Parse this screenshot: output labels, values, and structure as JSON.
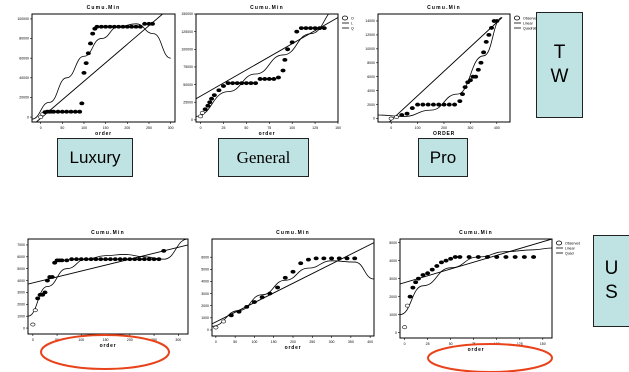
{
  "labels": {
    "luxury": "Luxury",
    "general": "General",
    "pro": "Pro",
    "tw": [
      "T",
      "W"
    ],
    "us": [
      "U",
      "S"
    ]
  },
  "colors": {
    "box_fill": "#bfe3e3",
    "ellipse": "#e8431b",
    "ink": "#000000"
  },
  "chart_data": [
    {
      "id": "tw-luxury",
      "type": "scatter",
      "title": "Cumu.Min",
      "xlabel": "order",
      "ylabel": "",
      "xlim": [
        -20,
        310
      ],
      "ylim": [
        -5000,
        105000
      ],
      "xticks": [
        0,
        50,
        100,
        150,
        200,
        250,
        300
      ],
      "yticks": [
        0,
        20000,
        40000,
        60000,
        80000,
        100000
      ],
      "points": [
        [
          0,
          0
        ],
        [
          5,
          3000
        ],
        [
          10,
          5000
        ],
        [
          15,
          5500
        ],
        [
          20,
          5500
        ],
        [
          25,
          5500
        ],
        [
          30,
          5500
        ],
        [
          40,
          5500
        ],
        [
          50,
          5500
        ],
        [
          60,
          5500
        ],
        [
          70,
          5500
        ],
        [
          80,
          5500
        ],
        [
          90,
          5500
        ],
        [
          95,
          14000
        ],
        [
          100,
          45000
        ],
        [
          105,
          55000
        ],
        [
          110,
          65000
        ],
        [
          115,
          75000
        ],
        [
          120,
          85000
        ],
        [
          125,
          90000
        ],
        [
          130,
          92000
        ],
        [
          140,
          92000
        ],
        [
          150,
          92000
        ],
        [
          160,
          92000
        ],
        [
          170,
          92000
        ],
        [
          180,
          92000
        ],
        [
          190,
          92000
        ],
        [
          200,
          92000
        ],
        [
          210,
          92000
        ],
        [
          220,
          92000
        ],
        [
          230,
          92000
        ],
        [
          240,
          95000
        ],
        [
          250,
          95000
        ],
        [
          258,
          95000
        ]
      ],
      "fits": [
        {
          "type": "linear",
          "points": [
            [
              -10,
              -5000
            ],
            [
              300,
              112000
            ]
          ]
        },
        {
          "type": "quadratic",
          "points": [
            [
              -20,
              -2000
            ],
            [
              20,
              15000
            ],
            [
              60,
              40000
            ],
            [
              100,
              62000
            ],
            [
              140,
              80000
            ],
            [
              180,
              92000
            ],
            [
              220,
              95000
            ],
            [
              260,
              85000
            ],
            [
              300,
              60000
            ]
          ]
        }
      ]
    },
    {
      "id": "tw-general",
      "type": "scatter",
      "title": "Cumu.Min",
      "xlabel": "order",
      "ylabel": "",
      "legend": [
        "O",
        "L",
        "Q"
      ],
      "xlim": [
        -5,
        150
      ],
      "ylim": [
        -3000,
        150000
      ],
      "xticks": [
        0,
        25,
        50,
        75,
        100,
        125,
        150
      ],
      "yticks": [
        0,
        25000,
        50000,
        75000,
        100000,
        125000,
        150000
      ],
      "points": [
        [
          0,
          5000
        ],
        [
          2,
          10000
        ],
        [
          5,
          15000
        ],
        [
          8,
          20000
        ],
        [
          10,
          25000
        ],
        [
          12,
          30000
        ],
        [
          15,
          35000
        ],
        [
          20,
          42000
        ],
        [
          25,
          48000
        ],
        [
          30,
          52000
        ],
        [
          35,
          52000
        ],
        [
          40,
          52000
        ],
        [
          45,
          52000
        ],
        [
          50,
          52000
        ],
        [
          55,
          52000
        ],
        [
          60,
          52000
        ],
        [
          65,
          58000
        ],
        [
          70,
          58000
        ],
        [
          75,
          58000
        ],
        [
          80,
          58000
        ],
        [
          85,
          60000
        ],
        [
          90,
          70000
        ],
        [
          92,
          85000
        ],
        [
          95,
          100000
        ],
        [
          100,
          110000
        ],
        [
          105,
          125000
        ],
        [
          110,
          130000
        ],
        [
          115,
          130000
        ],
        [
          120,
          130000
        ],
        [
          125,
          130000
        ],
        [
          130,
          130000
        ],
        [
          135,
          130000
        ]
      ],
      "fits": [
        {
          "type": "linear",
          "points": [
            [
              -5,
              30000
            ],
            [
              150,
              145000
            ]
          ]
        },
        {
          "type": "quadratic",
          "points": [
            [
              -5,
              5000
            ],
            [
              30,
              40000
            ],
            [
              60,
              65000
            ],
            [
              90,
              92000
            ],
            [
              120,
              122000
            ],
            [
              150,
              158000
            ]
          ]
        }
      ]
    },
    {
      "id": "tw-pro",
      "type": "scatter",
      "title": "Cumu.Min",
      "xlabel": "ORDER",
      "ylabel": "",
      "legend": [
        "Observed",
        "Linear",
        "Quadratic"
      ],
      "xlim": [
        -50,
        450
      ],
      "ylim": [
        -500,
        15000
      ],
      "xticks": [
        0,
        100,
        200,
        300,
        400
      ],
      "yticks": [
        0,
        2000,
        4000,
        6000,
        8000,
        10000,
        12000,
        14000
      ],
      "points": [
        [
          0,
          0
        ],
        [
          20,
          200
        ],
        [
          40,
          500
        ],
        [
          60,
          700
        ],
        [
          80,
          1500
        ],
        [
          100,
          2000
        ],
        [
          120,
          2000
        ],
        [
          140,
          2000
        ],
        [
          160,
          2000
        ],
        [
          180,
          2000
        ],
        [
          200,
          2000
        ],
        [
          220,
          2000
        ],
        [
          240,
          2000
        ],
        [
          260,
          2500
        ],
        [
          270,
          3500
        ],
        [
          280,
          4500
        ],
        [
          290,
          5200
        ],
        [
          300,
          5500
        ],
        [
          310,
          6000
        ],
        [
          320,
          6000
        ],
        [
          330,
          7000
        ],
        [
          340,
          8000
        ],
        [
          350,
          9500
        ],
        [
          360,
          11000
        ],
        [
          370,
          12000
        ],
        [
          380,
          13000
        ],
        [
          390,
          14000
        ],
        [
          400,
          14000
        ]
      ],
      "fits": [
        {
          "type": "linear",
          "points": [
            [
              -50,
              -2000
            ],
            [
              420,
              14500
            ]
          ]
        },
        {
          "type": "quadratic",
          "points": [
            [
              -50,
              500
            ],
            [
              50,
              300
            ],
            [
              150,
              1200
            ],
            [
              250,
              3500
            ],
            [
              350,
              9000
            ],
            [
              420,
              14500
            ]
          ]
        }
      ]
    },
    {
      "id": "us-luxury",
      "type": "scatter",
      "title": "Cumu.Min",
      "xlabel": "order",
      "ylabel": "",
      "xlim": [
        -10,
        320
      ],
      "ylim": [
        -500,
        7500
      ],
      "xticks": [
        0,
        50,
        100,
        150,
        200,
        250,
        300
      ],
      "yticks": [
        0,
        1000,
        2000,
        3000,
        4000,
        5000,
        6000,
        7000
      ],
      "points": [
        [
          0,
          300
        ],
        [
          5,
          1500
        ],
        [
          10,
          2500
        ],
        [
          15,
          2800
        ],
        [
          20,
          2800
        ],
        [
          25,
          3000
        ],
        [
          30,
          4000
        ],
        [
          35,
          4300
        ],
        [
          40,
          4300
        ],
        [
          45,
          5500
        ],
        [
          50,
          5700
        ],
        [
          55,
          5700
        ],
        [
          60,
          5700
        ],
        [
          70,
          5700
        ],
        [
          80,
          5800
        ],
        [
          90,
          5800
        ],
        [
          100,
          5800
        ],
        [
          110,
          5800
        ],
        [
          120,
          5800
        ],
        [
          130,
          5800
        ],
        [
          140,
          5800
        ],
        [
          150,
          5800
        ],
        [
          160,
          5800
        ],
        [
          170,
          5800
        ],
        [
          180,
          5800
        ],
        [
          190,
          5800
        ],
        [
          200,
          5800
        ],
        [
          210,
          5800
        ],
        [
          220,
          5800
        ],
        [
          230,
          5800
        ],
        [
          240,
          5800
        ],
        [
          250,
          5800
        ],
        [
          260,
          5800
        ],
        [
          270,
          6500
        ]
      ],
      "fits": [
        {
          "type": "linear",
          "points": [
            [
              -10,
              3700
            ],
            [
              320,
              7000
            ]
          ]
        },
        {
          "type": "quadratic",
          "points": [
            [
              -10,
              1000
            ],
            [
              30,
              3500
            ],
            [
              70,
              5000
            ],
            [
              110,
              5800
            ],
            [
              150,
              6100
            ],
            [
              190,
              6200
            ],
            [
              230,
              6000
            ],
            [
              270,
              5800
            ],
            [
              320,
              7500
            ]
          ]
        }
      ]
    },
    {
      "id": "us-general",
      "type": "scatter",
      "title": "Cumu.Min",
      "xlabel": "order",
      "ylabel": "",
      "xlim": [
        -10,
        410
      ],
      "ylim": [
        -500,
        7500
      ],
      "xticks": [
        0,
        50,
        100,
        150,
        200,
        250,
        300,
        350,
        400
      ],
      "yticks": [
        0,
        1000,
        2000,
        3000,
        4000,
        5000,
        6000
      ],
      "points": [
        [
          0,
          200
        ],
        [
          20,
          700
        ],
        [
          40,
          1200
        ],
        [
          60,
          1500
        ],
        [
          80,
          1900
        ],
        [
          100,
          2300
        ],
        [
          120,
          2700
        ],
        [
          140,
          3000
        ],
        [
          160,
          3500
        ],
        [
          180,
          4300
        ],
        [
          200,
          4800
        ],
        [
          220,
          5500
        ],
        [
          240,
          5800
        ],
        [
          260,
          5900
        ],
        [
          280,
          5900
        ],
        [
          300,
          5900
        ],
        [
          320,
          5900
        ],
        [
          340,
          5900
        ],
        [
          360,
          5900
        ]
      ],
      "fits": [
        {
          "type": "linear",
          "points": [
            [
              -10,
              500
            ],
            [
              410,
              7200
            ]
          ]
        },
        {
          "type": "quadratic",
          "points": [
            [
              -10,
              300
            ],
            [
              60,
              1600
            ],
            [
              120,
              2900
            ],
            [
              180,
              4100
            ],
            [
              240,
              5100
            ],
            [
              300,
              5700
            ],
            [
              360,
              5600
            ],
            [
              410,
              4200
            ]
          ]
        }
      ]
    },
    {
      "id": "us-pro",
      "type": "scatter",
      "title": "Cumu.Min",
      "xlabel": "order",
      "ylabel": "",
      "legend": [
        "Observed",
        "Linear",
        "Quad"
      ],
      "xlim": [
        -5,
        160
      ],
      "ylim": [
        -300,
        5200
      ],
      "xticks": [
        0,
        25,
        50,
        75,
        100,
        125,
        150
      ],
      "yticks": [
        0,
        1000,
        2000,
        3000,
        4000,
        5000
      ],
      "points": [
        [
          0,
          300
        ],
        [
          3,
          1500
        ],
        [
          6,
          2000
        ],
        [
          9,
          2500
        ],
        [
          12,
          2800
        ],
        [
          15,
          3000
        ],
        [
          20,
          3200
        ],
        [
          25,
          3300
        ],
        [
          30,
          3500
        ],
        [
          35,
          3700
        ],
        [
          40,
          3900
        ],
        [
          45,
          4000
        ],
        [
          50,
          4100
        ],
        [
          55,
          4200
        ],
        [
          60,
          4200
        ],
        [
          70,
          4200
        ],
        [
          80,
          4200
        ],
        [
          90,
          4200
        ],
        [
          100,
          4200
        ],
        [
          110,
          4200
        ],
        [
          120,
          4200
        ],
        [
          130,
          4200
        ],
        [
          140,
          4200
        ]
      ],
      "fits": [
        {
          "type": "linear",
          "points": [
            [
              -5,
              2700
            ],
            [
              160,
              5200
            ]
          ]
        },
        {
          "type": "quadratic",
          "points": [
            [
              -5,
              1000
            ],
            [
              20,
              2600
            ],
            [
              50,
              3600
            ],
            [
              80,
              4200
            ],
            [
              110,
              4500
            ],
            [
              140,
              4600
            ],
            [
              160,
              4700
            ]
          ]
        }
      ]
    }
  ]
}
